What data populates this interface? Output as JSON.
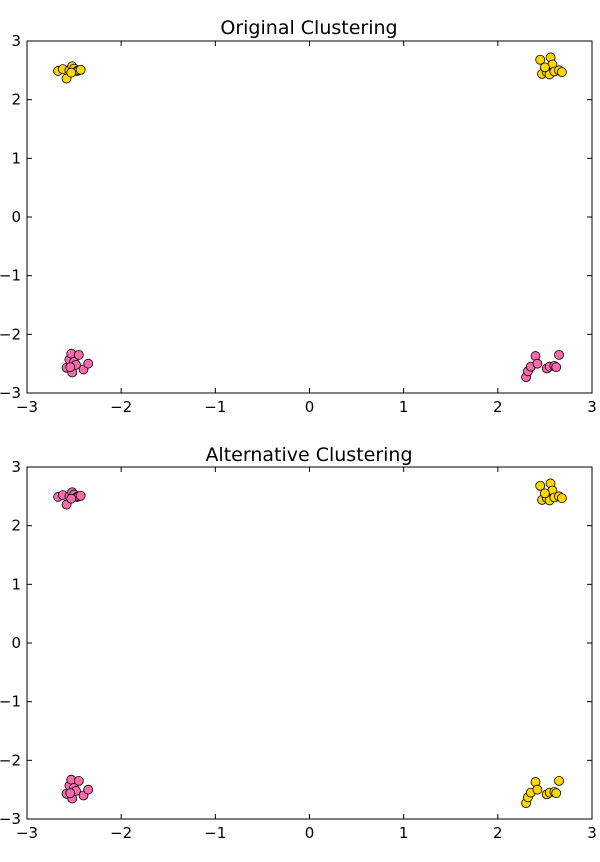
{
  "chart_data": [
    {
      "type": "scatter",
      "title": "Original Clustering",
      "xlabel": "",
      "ylabel": "",
      "xlim": [
        -3,
        3
      ],
      "ylim": [
        -3,
        3
      ],
      "xticks": [
        "−3",
        "−2",
        "−1",
        "0",
        "1",
        "2",
        "3"
      ],
      "yticks": [
        "3",
        "2",
        "1",
        "0",
        "−1",
        "−2",
        "−3"
      ],
      "grid": false,
      "series": [
        {
          "color": "#ffd700",
          "points": [
            [
              -2.67,
              2.49
            ],
            [
              -2.62,
              2.52
            ],
            [
              -2.58,
              2.36
            ],
            [
              -2.55,
              2.5
            ],
            [
              -2.52,
              2.57
            ],
            [
              -2.5,
              2.53
            ],
            [
              -2.47,
              2.49
            ],
            [
              -2.45,
              2.5
            ],
            [
              -2.43,
              2.51
            ],
            [
              -2.53,
              2.46
            ],
            [
              2.45,
              2.68
            ],
            [
              2.47,
              2.44
            ],
            [
              2.52,
              2.47
            ],
            [
              2.55,
              2.43
            ],
            [
              2.56,
              2.72
            ],
            [
              2.58,
              2.6
            ],
            [
              2.6,
              2.48
            ],
            [
              2.65,
              2.5
            ],
            [
              2.68,
              2.47
            ],
            [
              2.5,
              2.55
            ]
          ]
        },
        {
          "color": "#f76aab",
          "points": [
            [
              -2.58,
              -2.57
            ],
            [
              -2.55,
              -2.43
            ],
            [
              -2.53,
              -2.33
            ],
            [
              -2.52,
              -2.65
            ],
            [
              -2.5,
              -2.47
            ],
            [
              -2.48,
              -2.52
            ],
            [
              -2.45,
              -2.35
            ],
            [
              -2.4,
              -2.6
            ],
            [
              -2.35,
              -2.5
            ],
            [
              -2.54,
              -2.56
            ],
            [
              2.3,
              -2.73
            ],
            [
              2.32,
              -2.63
            ],
            [
              2.35,
              -2.55
            ],
            [
              2.4,
              -2.37
            ],
            [
              2.42,
              -2.5
            ],
            [
              2.52,
              -2.58
            ],
            [
              2.55,
              -2.55
            ],
            [
              2.6,
              -2.54
            ],
            [
              2.62,
              -2.56
            ],
            [
              2.65,
              -2.35
            ]
          ]
        }
      ]
    },
    {
      "type": "scatter",
      "title": "Alternative Clustering",
      "xlabel": "",
      "ylabel": "",
      "xlim": [
        -3,
        3
      ],
      "ylim": [
        -3,
        3
      ],
      "xticks": [
        "−3",
        "−2",
        "−1",
        "0",
        "1",
        "2",
        "3"
      ],
      "yticks": [
        "3",
        "2",
        "1",
        "0",
        "−1",
        "−2",
        "−3"
      ],
      "grid": false,
      "series": [
        {
          "color": "#ffd700",
          "points": [
            [
              2.45,
              2.68
            ],
            [
              2.47,
              2.44
            ],
            [
              2.52,
              2.47
            ],
            [
              2.55,
              2.43
            ],
            [
              2.56,
              2.72
            ],
            [
              2.58,
              2.6
            ],
            [
              2.6,
              2.48
            ],
            [
              2.65,
              2.5
            ],
            [
              2.68,
              2.47
            ],
            [
              2.5,
              2.55
            ],
            [
              2.3,
              -2.73
            ],
            [
              2.32,
              -2.63
            ],
            [
              2.35,
              -2.55
            ],
            [
              2.4,
              -2.37
            ],
            [
              2.42,
              -2.5
            ],
            [
              2.52,
              -2.58
            ],
            [
              2.55,
              -2.55
            ],
            [
              2.6,
              -2.54
            ],
            [
              2.62,
              -2.56
            ],
            [
              2.65,
              -2.35
            ]
          ]
        },
        {
          "color": "#f76aab",
          "points": [
            [
              -2.67,
              2.49
            ],
            [
              -2.62,
              2.52
            ],
            [
              -2.58,
              2.36
            ],
            [
              -2.55,
              2.5
            ],
            [
              -2.52,
              2.57
            ],
            [
              -2.5,
              2.53
            ],
            [
              -2.47,
              2.49
            ],
            [
              -2.45,
              2.5
            ],
            [
              -2.43,
              2.51
            ],
            [
              -2.53,
              2.46
            ],
            [
              -2.58,
              -2.57
            ],
            [
              -2.55,
              -2.43
            ],
            [
              -2.53,
              -2.33
            ],
            [
              -2.52,
              -2.65
            ],
            [
              -2.5,
              -2.47
            ],
            [
              -2.48,
              -2.52
            ],
            [
              -2.45,
              -2.35
            ],
            [
              -2.4,
              -2.6
            ],
            [
              -2.35,
              -2.5
            ],
            [
              -2.54,
              -2.56
            ]
          ]
        }
      ]
    }
  ]
}
